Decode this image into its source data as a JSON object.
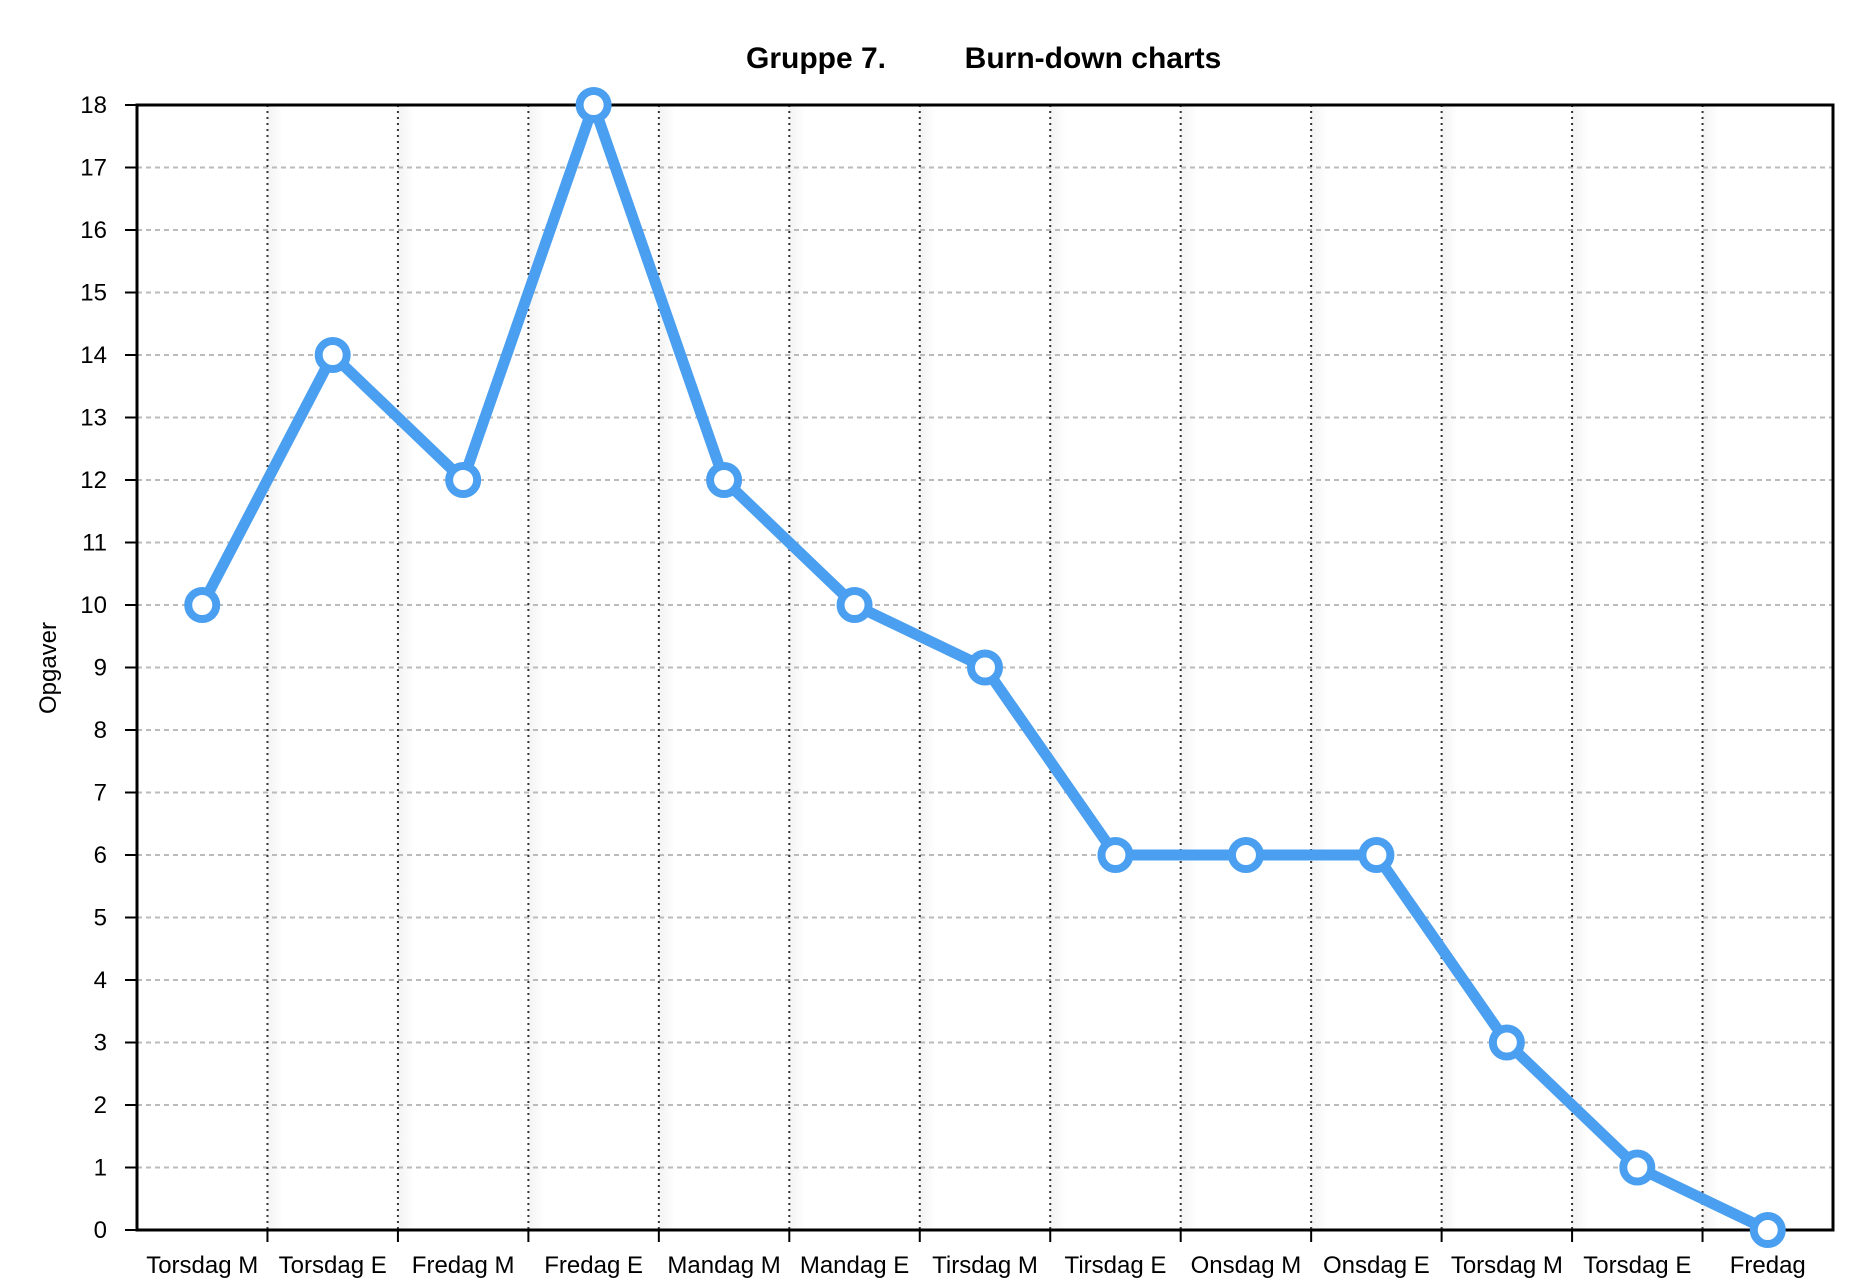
{
  "chart_data": {
    "type": "line",
    "title_left": "Gruppe 7.",
    "title_right": "Burn-down charts",
    "xlabel": "",
    "ylabel": "Opgaver",
    "categories": [
      "Torsdag M",
      "Torsdag E",
      "Fredag M",
      "Fredag E",
      "Mandag M",
      "Mandag E",
      "Tirsdag M",
      "Tirsdag E",
      "Onsdag M",
      "Onsdag E",
      "Torsdag M",
      "Torsdag E",
      "Fredag"
    ],
    "series": [
      {
        "values": [
          10,
          14,
          12,
          18,
          12,
          10,
          9,
          6,
          6,
          6,
          3,
          1,
          0
        ],
        "color": "#4A9FF0"
      }
    ],
    "ylim": [
      0,
      18
    ],
    "yticks": [
      "0",
      "1",
      "2",
      "3",
      "4",
      "5",
      "6",
      "7",
      "8",
      "9",
      "10",
      "11",
      "12",
      "13",
      "14",
      "15",
      "16",
      "17",
      "18"
    ],
    "grid": true,
    "legend": "none"
  }
}
